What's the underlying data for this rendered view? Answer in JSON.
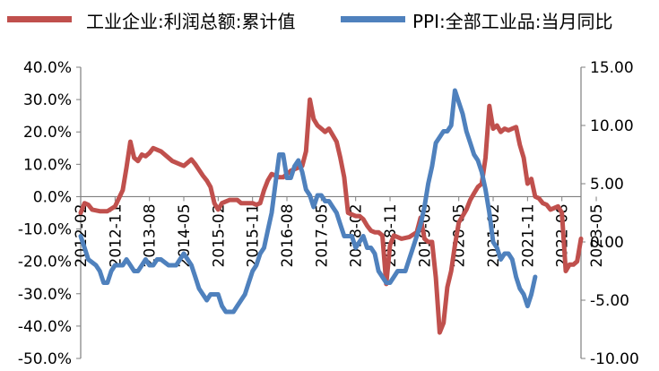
{
  "chart_data": {
    "type": "line",
    "title": "",
    "colors": {
      "profit": "#C0504D",
      "ppi": "#4F81BD",
      "axis": "#7F7F7F"
    },
    "legend": [
      "工业企业:利润总额:累计值",
      "PPI:全部工业品:当月同比"
    ],
    "left_axis": {
      "ylim": [
        -50,
        40
      ],
      "tick_values": [
        40,
        30,
        20,
        10,
        0,
        -10,
        -20,
        -30,
        -40,
        -50
      ],
      "tick_labels": [
        "40.0%",
        "30.0%",
        "20.0%",
        "10.0%",
        "0.0%",
        "-10.0%",
        "-20.0%",
        "-30.0%",
        "-40.0%",
        "-50.0%"
      ]
    },
    "right_axis": {
      "ylim": [
        -10,
        15
      ],
      "tick_values": [
        15,
        10,
        5,
        0,
        -5,
        -10
      ],
      "tick_labels": [
        "15.00",
        "10.00",
        "5.00",
        "0.00",
        "-5.00",
        "-10.00"
      ]
    },
    "x_axis": {
      "tick_labels": [
        "2012-02",
        "2012-11",
        "2013-08",
        "2014-05",
        "2015-02",
        "2015-11",
        "2016-08",
        "2017-05",
        "2018-02",
        "2018-11",
        "2019-08",
        "2020-05",
        "2021-02",
        "2021-11",
        "2022-08",
        "2023-05"
      ],
      "tick_index": [
        0,
        9,
        18,
        27,
        36,
        45,
        54,
        63,
        72,
        81,
        90,
        99,
        108,
        117,
        126,
        135
      ]
    },
    "series": [
      {
        "name": "工业企业:利润总额:累计值",
        "axis": "left",
        "points": [
          [
            0,
            -5
          ],
          [
            1,
            -2
          ],
          [
            2,
            -2.5
          ],
          [
            3,
            -4
          ],
          [
            5,
            -4.5
          ],
          [
            7,
            -4.5
          ],
          [
            9,
            -3
          ],
          [
            11,
            2
          ],
          [
            12,
            9
          ],
          [
            13,
            17
          ],
          [
            14,
            12
          ],
          [
            15,
            11
          ],
          [
            16,
            13
          ],
          [
            17,
            12.5
          ],
          [
            18,
            13.5
          ],
          [
            19,
            15
          ],
          [
            21,
            14
          ],
          [
            24,
            11
          ],
          [
            26,
            10
          ],
          [
            27,
            9.5
          ],
          [
            29,
            11.5
          ],
          [
            30,
            10
          ],
          [
            32,
            6.5
          ],
          [
            33,
            5
          ],
          [
            34,
            3
          ],
          [
            35,
            -2
          ],
          [
            36,
            -4
          ],
          [
            37,
            -2
          ],
          [
            39,
            -1
          ],
          [
            41,
            -1
          ],
          [
            42,
            -2
          ],
          [
            45,
            -2
          ],
          [
            46,
            -2.5
          ],
          [
            47,
            -2
          ],
          [
            48,
            2
          ],
          [
            49,
            5
          ],
          [
            50,
            7
          ],
          [
            51,
            6.5
          ],
          [
            52,
            6
          ],
          [
            53,
            6
          ],
          [
            55,
            8
          ],
          [
            56,
            8.5
          ],
          [
            58,
            9.5
          ],
          [
            59,
            14
          ],
          [
            60,
            30
          ],
          [
            61,
            24
          ],
          [
            62,
            22
          ],
          [
            63,
            21
          ],
          [
            64,
            20
          ],
          [
            65,
            21
          ],
          [
            67,
            17
          ],
          [
            68,
            12
          ],
          [
            69,
            6
          ],
          [
            70,
            -5
          ],
          [
            71,
            -5.5
          ],
          [
            72,
            -6
          ],
          [
            73,
            -6
          ],
          [
            74,
            -7
          ],
          [
            75,
            -9
          ],
          [
            76,
            -10.5
          ],
          [
            77,
            -11
          ],
          [
            78,
            -11
          ],
          [
            79,
            -12
          ],
          [
            80,
            -27
          ],
          [
            81,
            -15
          ],
          [
            82,
            -12
          ],
          [
            84,
            -13
          ],
          [
            86,
            -12.5
          ],
          [
            88,
            -11
          ],
          [
            89,
            -6.5
          ],
          [
            90,
            -13
          ],
          [
            91,
            -14
          ],
          [
            92,
            -14
          ],
          [
            93,
            -25
          ],
          [
            94,
            -42
          ],
          [
            95,
            -39
          ],
          [
            96,
            -28
          ],
          [
            97,
            -23
          ],
          [
            98,
            -15
          ],
          [
            99,
            -8
          ],
          [
            100,
            -6
          ],
          [
            101,
            -4
          ],
          [
            102,
            -1
          ],
          [
            103,
            1
          ],
          [
            104,
            3
          ],
          [
            105,
            4
          ],
          [
            106,
            12
          ],
          [
            107,
            28
          ],
          [
            108,
            21
          ],
          [
            109,
            22
          ],
          [
            110,
            20
          ],
          [
            111,
            21
          ],
          [
            112,
            20.5
          ],
          [
            113,
            21
          ],
          [
            114,
            21.5
          ],
          [
            115,
            16
          ],
          [
            116,
            12
          ],
          [
            117,
            4
          ],
          [
            118,
            5.5
          ],
          [
            119,
            0
          ],
          [
            120,
            -0.5
          ],
          [
            121,
            -2
          ],
          [
            122,
            -2.5
          ],
          [
            123,
            -4
          ],
          [
            125,
            -3
          ],
          [
            126,
            -5
          ],
          [
            127,
            -23
          ],
          [
            128,
            -21
          ],
          [
            129,
            -21
          ],
          [
            130,
            -20
          ],
          [
            131,
            -13
          ]
        ]
      },
      {
        "name": "PPI:全部工业品:当月同比",
        "axis": "right",
        "points": [
          [
            0,
            0.5
          ],
          [
            1,
            -0.5
          ],
          [
            2,
            -1.5
          ],
          [
            4,
            -2
          ],
          [
            5,
            -2.5
          ],
          [
            6,
            -3.5
          ],
          [
            7,
            -3.5
          ],
          [
            8,
            -2.5
          ],
          [
            9,
            -2
          ],
          [
            10,
            -2
          ],
          [
            11,
            -2
          ],
          [
            12,
            -1.5
          ],
          [
            13,
            -2
          ],
          [
            14,
            -2.5
          ],
          [
            15,
            -2.5
          ],
          [
            16,
            -2
          ],
          [
            17,
            -1.5
          ],
          [
            18,
            -2
          ],
          [
            19,
            -2
          ],
          [
            20,
            -1.5
          ],
          [
            21,
            -1.5
          ],
          [
            23,
            -2
          ],
          [
            24,
            -2
          ],
          [
            25,
            -2
          ],
          [
            26,
            -1.5
          ],
          [
            27,
            -1
          ],
          [
            28,
            -1.5
          ],
          [
            29,
            -2
          ],
          [
            30,
            -3
          ],
          [
            31,
            -4
          ],
          [
            32,
            -4.5
          ],
          [
            33,
            -5
          ],
          [
            34,
            -4.5
          ],
          [
            35,
            -4.5
          ],
          [
            36,
            -4.5
          ],
          [
            37,
            -5.5
          ],
          [
            38,
            -6
          ],
          [
            39,
            -6
          ],
          [
            40,
            -6
          ],
          [
            41,
            -5.5
          ],
          [
            42,
            -5
          ],
          [
            43,
            -4.5
          ],
          [
            44,
            -3.5
          ],
          [
            45,
            -2.5
          ],
          [
            46,
            -2
          ],
          [
            47,
            -1
          ],
          [
            48,
            -0.5
          ],
          [
            49,
            1
          ],
          [
            50,
            2.5
          ],
          [
            51,
            5
          ],
          [
            52,
            7.5
          ],
          [
            53,
            7.5
          ],
          [
            54,
            5.5
          ],
          [
            55,
            5.5
          ],
          [
            56,
            6.5
          ],
          [
            57,
            7
          ],
          [
            58,
            6
          ],
          [
            59,
            4.5
          ],
          [
            60,
            4
          ],
          [
            61,
            3
          ],
          [
            62,
            4
          ],
          [
            63,
            4
          ],
          [
            64,
            3.5
          ],
          [
            65,
            3.5
          ],
          [
            66,
            3
          ],
          [
            67,
            2.5
          ],
          [
            68,
            1.5
          ],
          [
            69,
            0.5
          ],
          [
            70,
            0.5
          ],
          [
            71,
            0.5
          ],
          [
            72,
            -0.5
          ],
          [
            73,
            0
          ],
          [
            74,
            0.5
          ],
          [
            75,
            -0.5
          ],
          [
            76,
            -0.5
          ],
          [
            77,
            -1
          ],
          [
            78,
            -2.5
          ],
          [
            79,
            -3
          ],
          [
            80,
            -3.5
          ],
          [
            81,
            -3.5
          ],
          [
            82,
            -3
          ],
          [
            83,
            -2.5
          ],
          [
            84,
            -2.5
          ],
          [
            85,
            -2.5
          ],
          [
            86,
            -1.5
          ],
          [
            87,
            -0.5
          ],
          [
            88,
            0.5
          ],
          [
            89,
            1.5
          ],
          [
            90,
            3
          ],
          [
            91,
            5
          ],
          [
            92,
            6.5
          ],
          [
            93,
            8.5
          ],
          [
            94,
            9
          ],
          [
            95,
            9.5
          ],
          [
            96,
            9.5
          ],
          [
            97,
            10
          ],
          [
            98,
            13
          ],
          [
            99,
            12
          ],
          [
            100,
            11
          ],
          [
            101,
            9.5
          ],
          [
            102,
            8.5
          ],
          [
            103,
            7.5
          ],
          [
            104,
            7
          ],
          [
            105,
            6
          ],
          [
            106,
            4.5
          ],
          [
            107,
            2.5
          ],
          [
            108,
            0
          ],
          [
            109,
            -0.5
          ],
          [
            110,
            -1.5
          ],
          [
            111,
            -1
          ],
          [
            112,
            -1
          ],
          [
            113,
            -1.5
          ],
          [
            114,
            -3
          ],
          [
            115,
            -4
          ],
          [
            116,
            -4.5
          ],
          [
            117,
            -5.5
          ],
          [
            118,
            -4.5
          ],
          [
            119,
            -3
          ]
        ]
      }
    ]
  }
}
